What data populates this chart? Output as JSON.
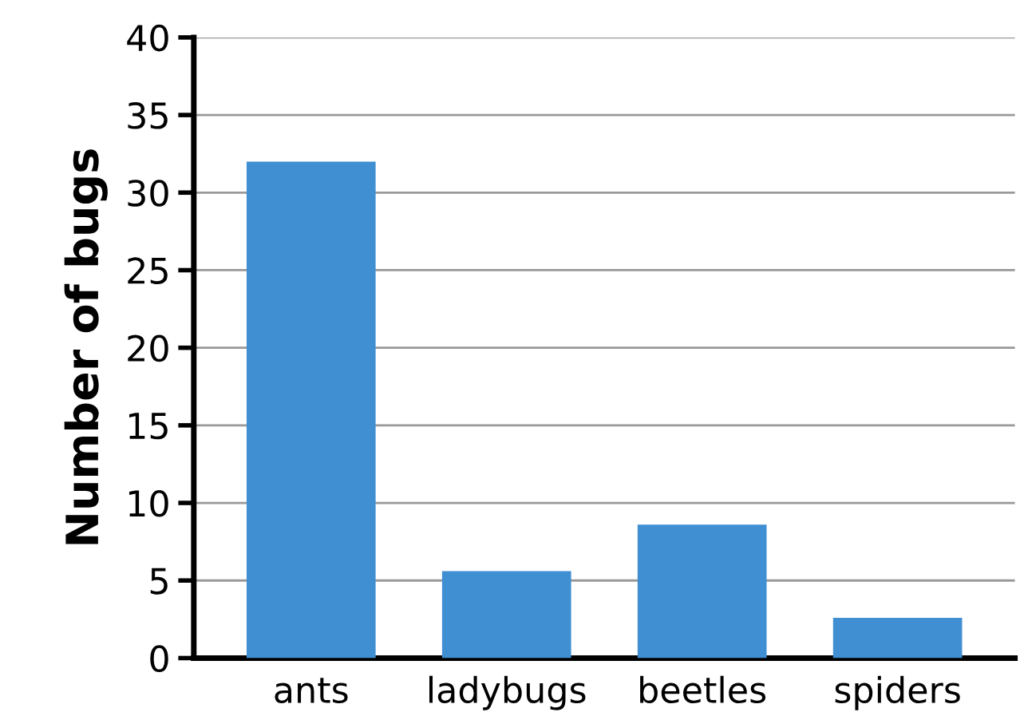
{
  "chart_data": {
    "type": "bar",
    "ylabel": "Number of bugs",
    "categories": [
      "ants",
      "ladybugs",
      "beetles",
      "spiders"
    ],
    "values": [
      32,
      5.6,
      8.6,
      2.6
    ],
    "color": "#3f8fd2",
    "ylim": [
      0,
      40
    ],
    "yticks": [
      0,
      5,
      10,
      15,
      20,
      25,
      30,
      35,
      40
    ],
    "grid": "y"
  }
}
